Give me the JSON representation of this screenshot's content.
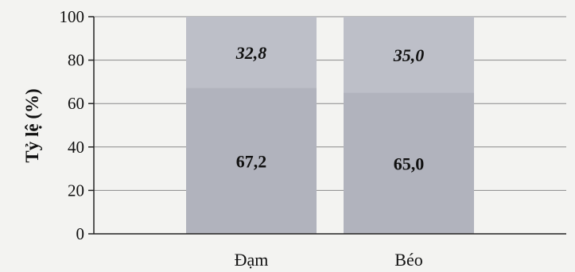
{
  "chart_data": {
    "type": "bar",
    "stacked": true,
    "ylabel": "Tỷ lệ (%)",
    "xlabel": "",
    "ylim": [
      0,
      100
    ],
    "yticks": [
      0,
      20,
      40,
      60,
      80,
      100
    ],
    "grid": true,
    "categories": [
      "Đạm",
      "Béo"
    ],
    "series": [
      {
        "values": [
          67.2,
          65.0
        ],
        "labels": [
          "67,2",
          "65,0"
        ],
        "color": "#b1b3bd",
        "label_style": "bold"
      },
      {
        "values": [
          32.8,
          35.0
        ],
        "labels": [
          "32,8",
          "35,0"
        ],
        "color": "#bdbfc8",
        "label_style": "bold-italic"
      }
    ]
  }
}
